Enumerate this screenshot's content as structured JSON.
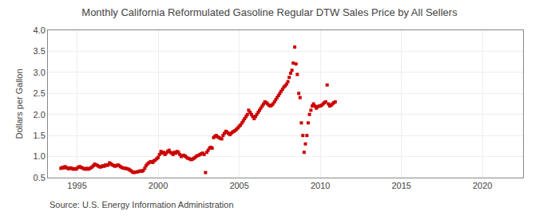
{
  "chart_data": {
    "type": "scatter",
    "title": "Monthly California Reformulated Gasoline Regular DTW Sales Price by All Sellers",
    "ylabel": "Dollars per Gallon",
    "annotations": [
      "Source: U.S. Energy Information Administration"
    ],
    "color": "#CC0000",
    "marker": "square",
    "grid": true,
    "xlim": [
      1993.2,
      2022.5
    ],
    "xticks": [
      1995,
      2000,
      2005,
      2010,
      2015,
      2020
    ],
    "ylim": [
      0.5,
      4.0
    ],
    "yticks": [
      0.5,
      {
        "value": 1.0,
        "label": "1.0"
      },
      1.5,
      {
        "value": 2.0,
        "label": "2.0"
      },
      2.5,
      {
        "value": 3.0,
        "label": "3.0"
      },
      3.5,
      {
        "value": 4.0,
        "label": "4.0"
      }
    ],
    "x": [
      1994.0,
      1994.08,
      1994.17,
      1994.25,
      1994.33,
      1994.42,
      1994.5,
      1994.58,
      1994.67,
      1994.75,
      1994.83,
      1994.92,
      1995.0,
      1995.08,
      1995.17,
      1995.25,
      1995.33,
      1995.42,
      1995.5,
      1995.58,
      1995.67,
      1995.75,
      1995.83,
      1995.92,
      1996.0,
      1996.08,
      1996.17,
      1996.25,
      1996.33,
      1996.42,
      1996.5,
      1996.58,
      1996.67,
      1996.75,
      1996.83,
      1996.92,
      1997.0,
      1997.08,
      1997.17,
      1997.25,
      1997.33,
      1997.42,
      1997.5,
      1997.58,
      1997.67,
      1997.75,
      1997.83,
      1997.92,
      1998.0,
      1998.08,
      1998.17,
      1998.25,
      1998.33,
      1998.42,
      1998.5,
      1998.58,
      1998.67,
      1998.75,
      1998.83,
      1998.92,
      1999.0,
      1999.08,
      1999.17,
      1999.25,
      1999.33,
      1999.42,
      1999.5,
      1999.58,
      1999.67,
      1999.75,
      1999.83,
      1999.92,
      2000.0,
      2000.08,
      2000.17,
      2000.25,
      2000.33,
      2000.42,
      2000.5,
      2000.58,
      2000.67,
      2000.75,
      2000.83,
      2000.92,
      2001.0,
      2001.08,
      2001.17,
      2001.25,
      2001.33,
      2001.42,
      2001.5,
      2001.58,
      2001.67,
      2001.75,
      2001.83,
      2001.92,
      2002.0,
      2002.08,
      2002.17,
      2002.25,
      2002.33,
      2002.42,
      2002.5,
      2002.58,
      2002.67,
      2002.75,
      2002.83,
      2002.92,
      2003.0,
      2003.08,
      2003.17,
      2003.25,
      2003.33,
      2003.42,
      2003.5,
      2003.58,
      2003.67,
      2003.75,
      2003.83,
      2003.92,
      2004.0,
      2004.08,
      2004.17,
      2004.25,
      2004.33,
      2004.42,
      2004.5,
      2004.58,
      2004.67,
      2004.75,
      2004.83,
      2004.92,
      2005.0,
      2005.08,
      2005.17,
      2005.25,
      2005.33,
      2005.42,
      2005.5,
      2005.58,
      2005.67,
      2005.75,
      2005.83,
      2005.92,
      2006.0,
      2006.08,
      2006.17,
      2006.25,
      2006.33,
      2006.42,
      2006.5,
      2006.58,
      2006.67,
      2006.75,
      2006.83,
      2006.92,
      2007.0,
      2007.08,
      2007.17,
      2007.25,
      2007.33,
      2007.42,
      2007.5,
      2007.58,
      2007.67,
      2007.75,
      2007.83,
      2007.92,
      2008.0,
      2008.08,
      2008.17,
      2008.25,
      2008.33,
      2008.42,
      2008.5,
      2008.58,
      2008.67,
      2008.75,
      2008.83,
      2008.92,
      2009.0,
      2009.08,
      2009.17,
      2009.25,
      2009.33,
      2009.42,
      2009.5,
      2009.58,
      2009.67,
      2009.75,
      2009.83,
      2009.92,
      2010.0,
      2010.08,
      2010.17,
      2010.25,
      2010.33,
      2010.42,
      2010.5,
      2010.58,
      2010.67,
      2010.75,
      2010.83,
      2010.92
    ],
    "values": [
      0.72,
      0.74,
      0.73,
      0.76,
      0.74,
      0.72,
      0.71,
      0.73,
      0.72,
      0.7,
      0.71,
      0.7,
      0.72,
      0.75,
      0.76,
      0.74,
      0.73,
      0.71,
      0.7,
      0.72,
      0.7,
      0.71,
      0.73,
      0.75,
      0.78,
      0.82,
      0.8,
      0.79,
      0.77,
      0.75,
      0.76,
      0.78,
      0.77,
      0.8,
      0.79,
      0.8,
      0.85,
      0.83,
      0.8,
      0.79,
      0.77,
      0.78,
      0.8,
      0.79,
      0.76,
      0.74,
      0.73,
      0.72,
      0.72,
      0.71,
      0.7,
      0.68,
      0.66,
      0.63,
      0.62,
      0.63,
      0.63,
      0.64,
      0.65,
      0.66,
      0.65,
      0.67,
      0.72,
      0.78,
      0.82,
      0.85,
      0.87,
      0.88,
      0.86,
      0.9,
      0.92,
      0.95,
      0.98,
      1.05,
      1.12,
      1.08,
      1.1,
      1.05,
      1.08,
      1.12,
      1.15,
      1.1,
      1.08,
      1.05,
      1.1,
      1.08,
      1.12,
      1.1,
      1.05,
      1.0,
      1.02,
      1.03,
      1.01,
      0.98,
      0.96,
      0.95,
      0.93,
      0.93,
      0.95,
      0.97,
      1.0,
      1.02,
      1.03,
      1.05,
      1.07,
      1.08,
      1.05,
      0.62,
      1.1,
      1.15,
      1.2,
      1.22,
      1.2,
      1.45,
      1.48,
      1.5,
      1.47,
      1.45,
      1.43,
      1.42,
      1.5,
      1.55,
      1.6,
      1.58,
      1.55,
      1.52,
      1.55,
      1.58,
      1.6,
      1.62,
      1.65,
      1.68,
      1.72,
      1.75,
      1.8,
      1.85,
      1.9,
      1.95,
      2.0,
      2.1,
      2.05,
      2.0,
      1.95,
      1.9,
      1.95,
      2.0,
      2.05,
      2.1,
      2.15,
      2.2,
      2.25,
      2.3,
      2.28,
      2.25,
      2.22,
      2.2,
      2.22,
      2.25,
      2.3,
      2.35,
      2.4,
      2.45,
      2.5,
      2.55,
      2.6,
      2.65,
      2.68,
      2.72,
      2.78,
      2.88,
      2.98,
      3.05,
      3.22,
      3.6,
      3.2,
      2.95,
      2.5,
      2.4,
      1.8,
      1.5,
      1.1,
      1.3,
      1.5,
      1.8,
      2.0,
      2.1,
      2.2,
      2.25,
      2.2,
      2.15,
      2.18,
      2.2,
      2.2,
      2.22,
      2.25,
      2.28,
      2.3,
      2.7,
      2.25,
      2.2,
      2.22,
      2.25,
      2.28,
      2.3
    ]
  }
}
